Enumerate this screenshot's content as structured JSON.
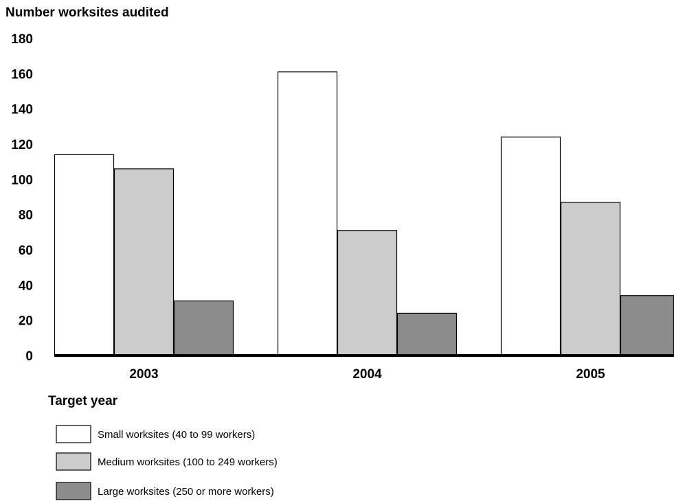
{
  "chart_data": {
    "type": "bar",
    "ylabel": "Number worksites audited",
    "xlabel": "Target year",
    "categories": [
      "2003",
      "2004",
      "2005"
    ],
    "ylim": [
      0,
      180
    ],
    "yticks": [
      0,
      20,
      40,
      60,
      80,
      100,
      120,
      140,
      160,
      180
    ],
    "grid": false,
    "legend_position": "bottom-left",
    "series": [
      {
        "name": "Small worksites (40 to 99 workers)",
        "values": [
          114,
          161,
          124
        ],
        "color": "#ffffff"
      },
      {
        "name": "Medium worksites (100 to 249 workers)",
        "values": [
          106,
          71,
          87
        ],
        "color": "#cccccc"
      },
      {
        "name": "Large worksites (250 or more workers)",
        "values": [
          31,
          24,
          34
        ],
        "color": "#8c8c8c"
      }
    ]
  }
}
